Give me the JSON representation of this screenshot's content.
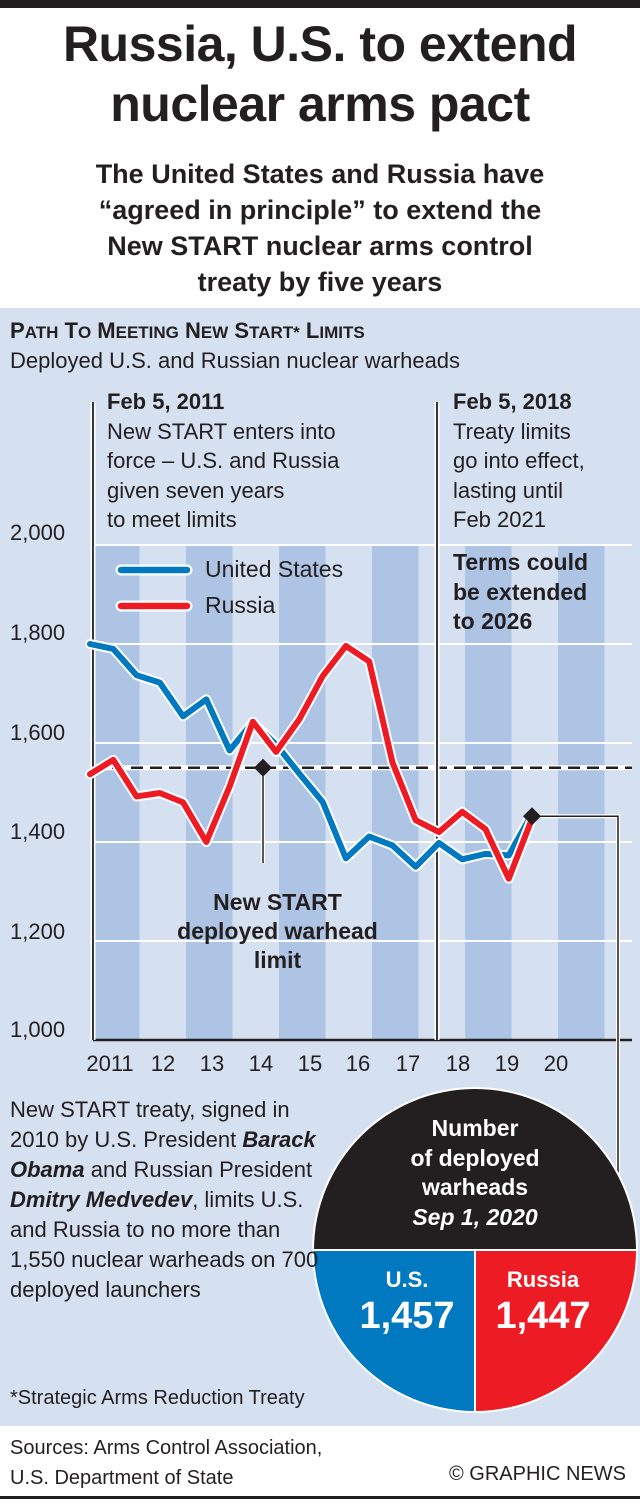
{
  "header": {
    "title_lines": [
      "Russia, U.S. to extend",
      "nuclear arms pact"
    ],
    "subtitle_lines": [
      "The United States and Russia have",
      "“agreed in principle” to extend the",
      "New START nuclear arms control",
      "treaty by five years"
    ]
  },
  "section": {
    "heading": "PATH TO MEETING NEW START* LIMITS",
    "subheading": "Deployed U.S. and Russian nuclear warheads"
  },
  "annotations": {
    "a2011": {
      "date": "Feb 5, 2011",
      "lines": [
        "New START enters into",
        "force – U.S. and Russia",
        "given seven years",
        "to meet limits"
      ]
    },
    "a2018": {
      "date": "Feb 5, 2018",
      "lines": [
        "Treaty limits",
        "go into effect,",
        "lasting until",
        "Feb 2021"
      ]
    },
    "terms": [
      "Terms could",
      "be extended",
      "to 2026"
    ],
    "limit": [
      "New START",
      "deployed warhead",
      "limit"
    ]
  },
  "colors": {
    "us": "#0079c1",
    "russia": "#ed1c24",
    "panel": "#d5e0f1",
    "stripe": "#adc4e4",
    "dark": "#231f20"
  },
  "chart_data": {
    "type": "line",
    "title": "PATH TO MEETING NEW START* LIMITS",
    "subtitle": "Deployed U.S. and Russian nuclear warheads",
    "xlabel": "",
    "ylabel": "",
    "ylim": [
      1000,
      2000
    ],
    "yticks": [
      "1,000",
      "1,200",
      "1,400",
      "1,600",
      "1,800",
      "2,000"
    ],
    "ytick_values": [
      1000,
      1200,
      1400,
      1600,
      1800,
      2000
    ],
    "xticks": [
      "2011",
      "12",
      "13",
      "14",
      "15",
      "16",
      "17",
      "18",
      "19",
      "20"
    ],
    "x": [
      "Feb 2011",
      "Sep 2011",
      "Mar 2012",
      "Sep 2012",
      "Mar 2013",
      "Sep 2013",
      "Mar 2014",
      "Sep 2014",
      "Mar 2015",
      "Sep 2015",
      "Mar 2016",
      "Sep 2016",
      "Mar 2017",
      "Sep 2017",
      "Feb 2018",
      "Sep 2018",
      "Mar 2019",
      "Sep 2019",
      "Mar 2020",
      "Sep 2020"
    ],
    "series": [
      {
        "name": "United States",
        "values": [
          1800,
          1790,
          1737,
          1722,
          1654,
          1688,
          1585,
          1642,
          1597,
          1538,
          1481,
          1367,
          1411,
          1393,
          1350,
          1398,
          1365,
          1376,
          1373,
          1457
        ]
      },
      {
        "name": "Russia",
        "values": [
          1537,
          1566,
          1492,
          1499,
          1480,
          1400,
          1512,
          1643,
          1582,
          1648,
          1735,
          1796,
          1765,
          1561,
          1444,
          1420,
          1461,
          1426,
          1326,
          1447
        ]
      }
    ],
    "reference_line": {
      "label": "New START deployed warhead limit",
      "value": 1550
    },
    "legend": "top-left",
    "grid": true
  },
  "body_text": {
    "parts": [
      "New START treaty, signed in 2010 by U.S. President ",
      "Barack Obama",
      " and Russian President ",
      "Dmitry Medvedev",
      ", limits U.S. and Russia to no more than 1,550 nuclear warheads on 700 deployed launchers"
    ]
  },
  "pie": {
    "title_lines": [
      "Number",
      "of deployed",
      "warheads"
    ],
    "date": "Sep 1, 2020",
    "us_label": "U.S.",
    "us_value": "1,457",
    "russia_label": "Russia",
    "russia_value": "1,447"
  },
  "footnote": "*Strategic Arms Reduction Treaty",
  "footer": {
    "sources_lines": [
      "Sources: Arms Control Association,",
      "U.S. Department of State"
    ],
    "credit": "© GRAPHIC NEWS"
  }
}
